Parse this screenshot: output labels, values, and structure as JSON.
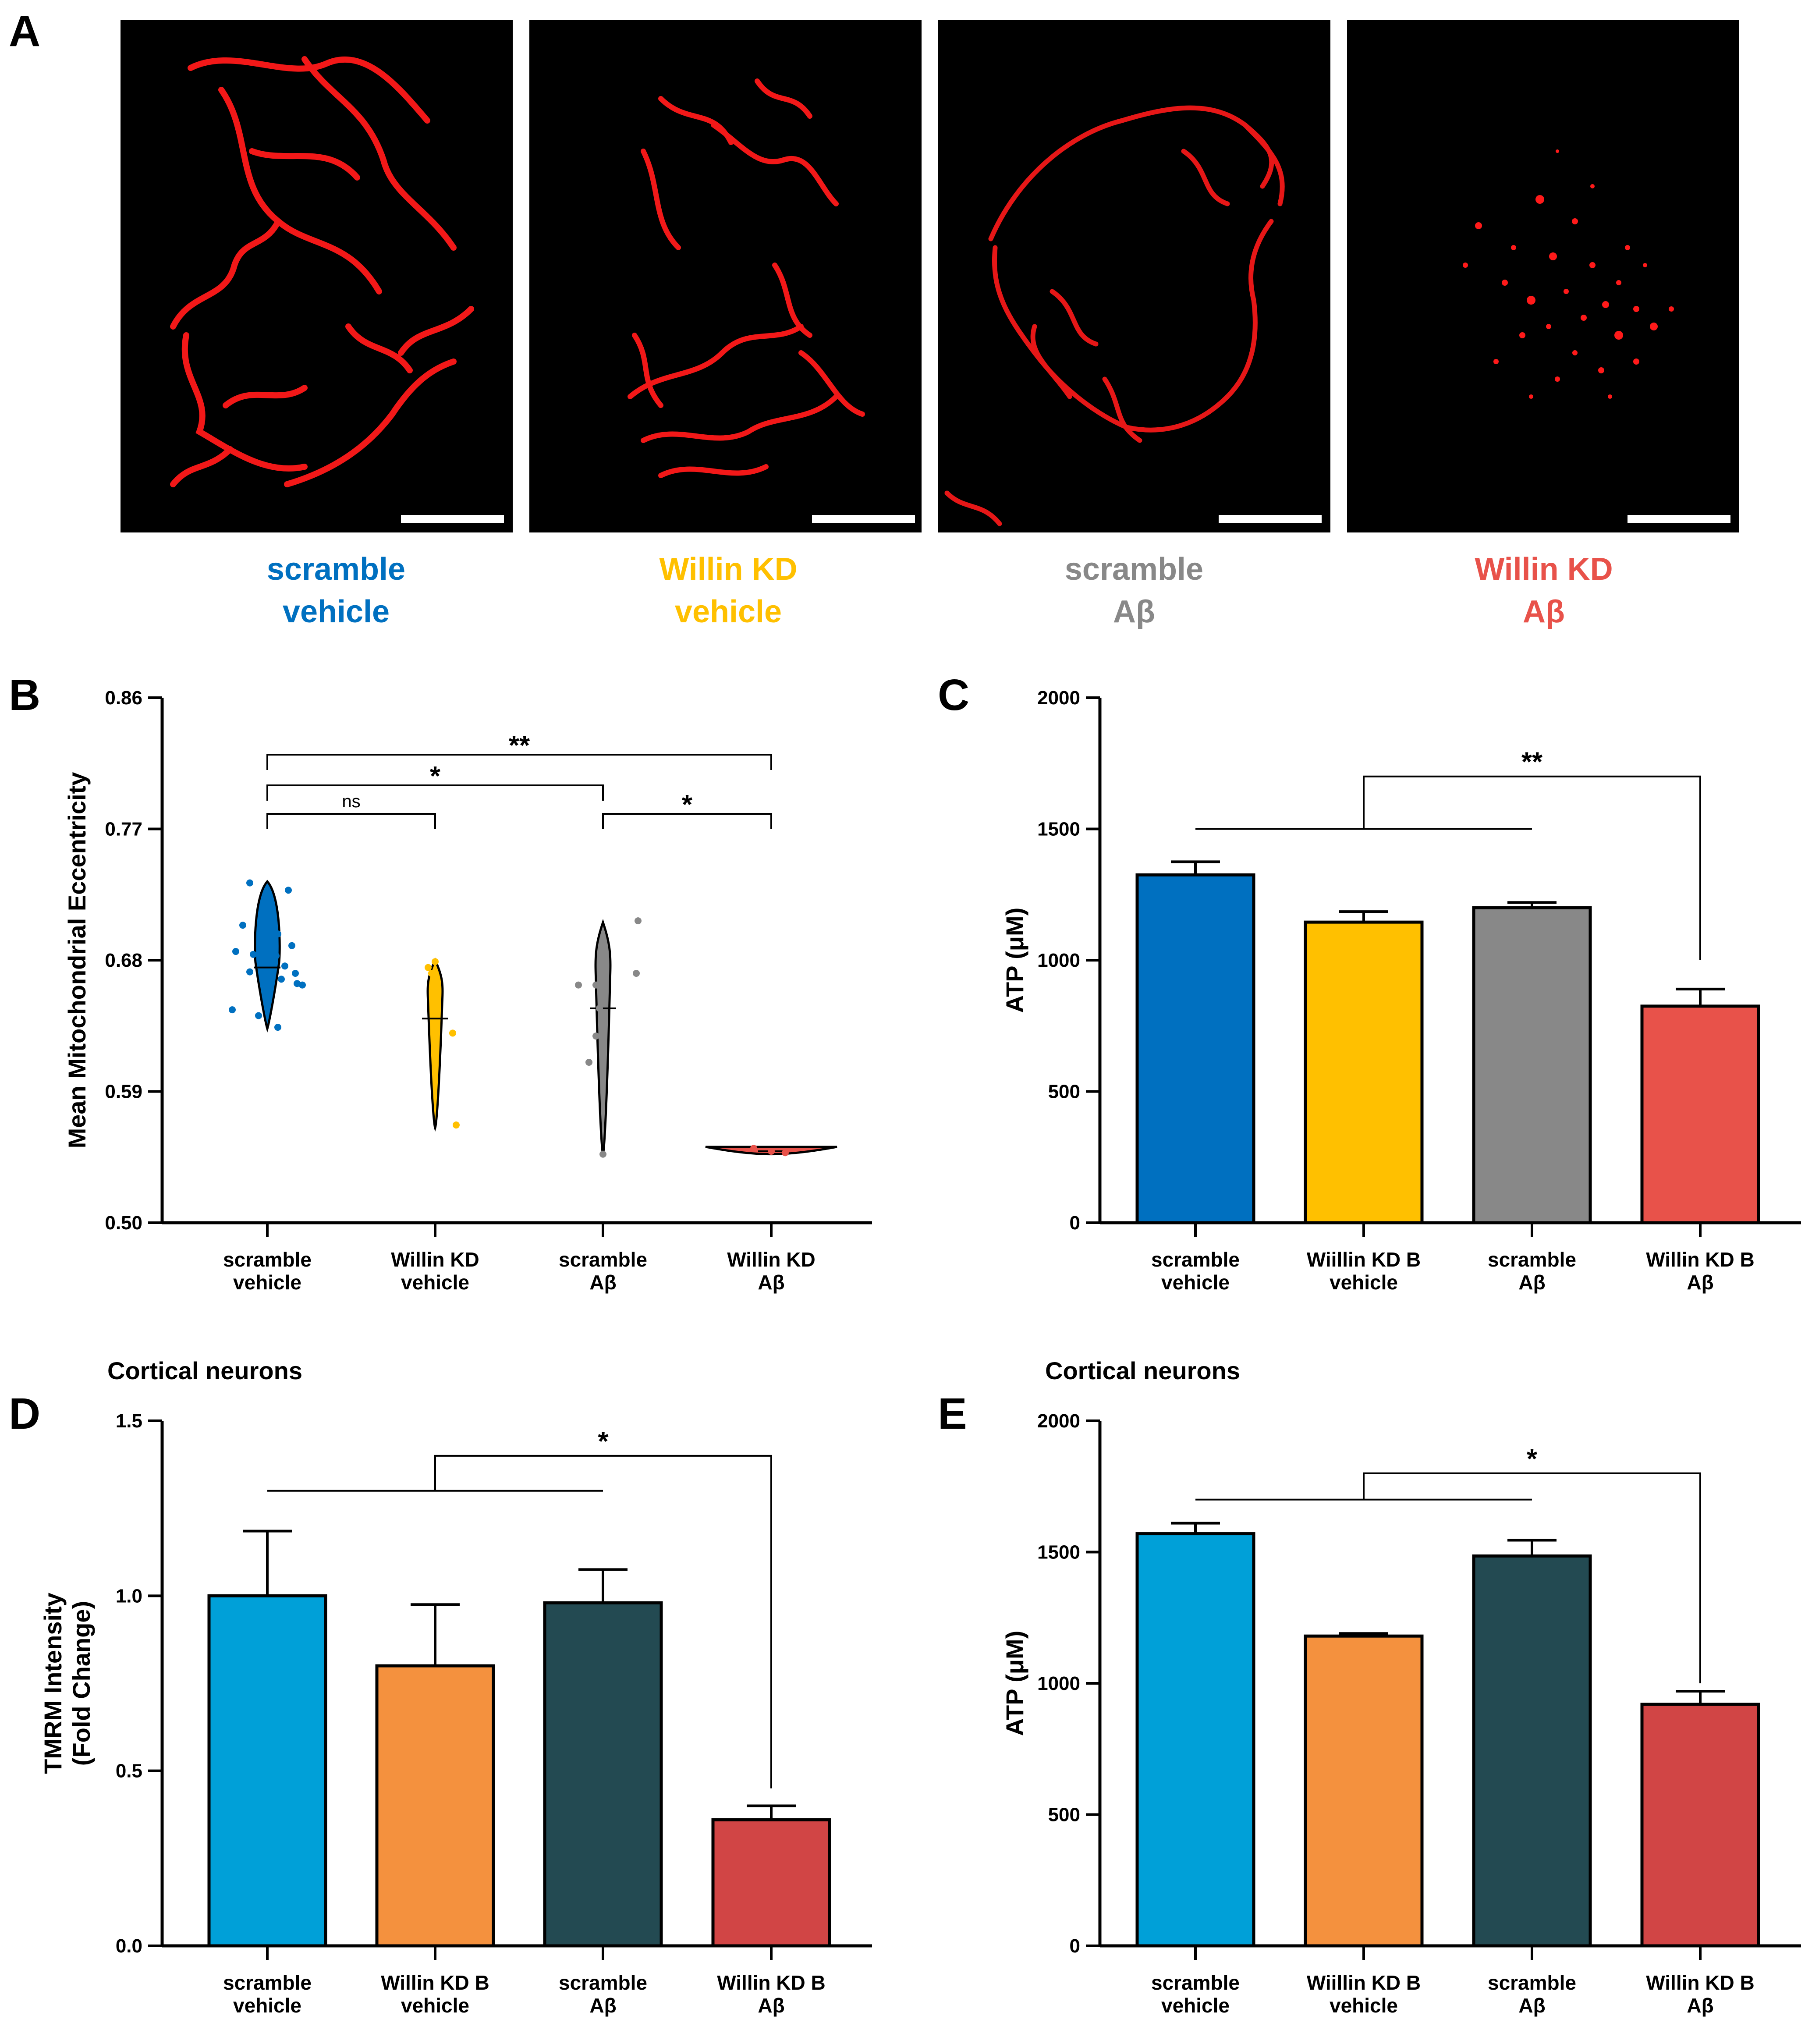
{
  "panel_letters": {
    "A": "A",
    "B": "B",
    "C": "C",
    "D": "D",
    "E": "E"
  },
  "colors": {
    "scramble_vehicle": "#0070c0",
    "willin_vehicle": "#ffc000",
    "scramble_ab": "#888888",
    "willin_ab": "#e8524a",
    "neuron_scramble_vehicle": "#00a0d8",
    "neuron_willin_vehicle": "#f4913e",
    "neuron_scramble_ab": "#234a52",
    "neuron_willin_ab": "#d14545",
    "mito_red": "#ff1a1a"
  },
  "panel_a": {
    "conditions": [
      {
        "line1": "scramble",
        "line2": "vehicle"
      },
      {
        "line1": "Willin KD",
        "line2": "vehicle"
      },
      {
        "line1": "scramble",
        "line2": "Aβ"
      },
      {
        "line1": "Willin KD",
        "line2": "Aβ"
      }
    ]
  },
  "chart_data": [
    {
      "panel": "B",
      "type": "violin",
      "title": "",
      "ylabel": "Mean Mitochondrial Eccentricity",
      "ylim": [
        0.5,
        0.86
      ],
      "yticks": [
        "0.50",
        "0.59",
        "0.68",
        "0.77",
        "0.86"
      ],
      "categories": [
        [
          "scramble",
          "vehicle"
        ],
        [
          "Willin KD",
          "vehicle"
        ],
        [
          "scramble",
          "Aβ"
        ],
        [
          "Willin KD",
          "Aβ"
        ]
      ],
      "series": [
        {
          "name": "scramble vehicle",
          "min": 0.633,
          "max": 0.734,
          "median": 0.675,
          "points": [
            [
              -0.1,
              0.733
            ],
            [
              0.12,
              0.728
            ],
            [
              -0.14,
              0.704
            ],
            [
              0.06,
              0.698
            ],
            [
              0.14,
              0.69
            ],
            [
              -0.18,
              0.686
            ],
            [
              -0.08,
              0.684
            ],
            [
              0.05,
              0.683
            ],
            [
              0.0,
              0.679
            ],
            [
              0.1,
              0.676
            ],
            [
              -0.1,
              0.672
            ],
            [
              0.16,
              0.671
            ],
            [
              0.02,
              0.668
            ],
            [
              0.08,
              0.667
            ],
            [
              0.17,
              0.664
            ],
            [
              0.2,
              0.663
            ],
            [
              -0.2,
              0.646
            ],
            [
              -0.05,
              0.642
            ],
            [
              0.06,
              0.634
            ]
          ]
        },
        {
          "name": "Willin KD vehicle",
          "min": 0.565,
          "max": 0.68,
          "median": 0.64,
          "points": [
            [
              0.0,
              0.679
            ],
            [
              -0.04,
              0.675
            ],
            [
              -0.02,
              0.671
            ],
            [
              0.1,
              0.63
            ],
            [
              0.12,
              0.567
            ]
          ]
        },
        {
          "name": "scramble Aβ",
          "min": 0.547,
          "max": 0.706,
          "median": 0.647,
          "points": [
            [
              0.2,
              0.707
            ],
            [
              -0.14,
              0.663
            ],
            [
              -0.04,
              0.663
            ],
            [
              0.19,
              0.671
            ],
            [
              -0.02,
              0.647
            ],
            [
              -0.04,
              0.628
            ],
            [
              -0.08,
              0.61
            ],
            [
              0.0,
              0.547
            ]
          ]
        },
        {
          "name": "Willin KD Aβ",
          "min": 0.547,
          "max": 0.552,
          "median": 0.549,
          "points": [
            [
              -0.1,
              0.551
            ],
            [
              0.0,
              0.549
            ],
            [
              0.08,
              0.548
            ]
          ]
        }
      ],
      "significance": [
        {
          "from": 0,
          "to": 3,
          "label": "**"
        },
        {
          "from": 0,
          "to": 2,
          "label": "*"
        },
        {
          "from": 0,
          "to": 1,
          "label": "ns"
        },
        {
          "from": 2,
          "to": 3,
          "label": "*"
        }
      ]
    },
    {
      "panel": "C",
      "type": "bar",
      "title": "",
      "ylabel": "ATP (μM)",
      "ylim": [
        0,
        2000
      ],
      "yticks": [
        "0",
        "500",
        "1000",
        "1500",
        "2000"
      ],
      "categories": [
        [
          "scramble",
          "vehicle"
        ],
        [
          "Wiillin KD B",
          "vehicle"
        ],
        [
          "scramble",
          "Aβ"
        ],
        [
          "Willin KD B",
          "Aβ"
        ]
      ],
      "values": [
        1325,
        1145,
        1200,
        825
      ],
      "errors": [
        50,
        40,
        20,
        65
      ],
      "comparison": {
        "group": [
          0,
          2
        ],
        "target": 3,
        "label": "**",
        "group_level": 1500,
        "top_level": 1700,
        "target_level": 1000
      }
    },
    {
      "panel": "D",
      "type": "bar",
      "title": "Cortical neurons",
      "ylabel_lines": [
        "TMRM Intensity",
        "(Fold Change)"
      ],
      "ylim": [
        0,
        1.5
      ],
      "yticks": [
        "0.0",
        "0.5",
        "1.0",
        "1.5"
      ],
      "categories": [
        [
          "scramble",
          "vehicle"
        ],
        [
          "Willin KD B",
          "vehicle"
        ],
        [
          "scramble",
          "Aβ"
        ],
        [
          "Willin KD B",
          "Aβ"
        ]
      ],
      "values": [
        1.0,
        0.8,
        0.98,
        0.36
      ],
      "errors": [
        0.185,
        0.175,
        0.095,
        0.04
      ],
      "comparison": {
        "group": [
          0,
          2
        ],
        "target": 3,
        "label": "*",
        "group_level": 1.3,
        "top_level": 1.4,
        "target_level": 0.45
      }
    },
    {
      "panel": "E",
      "type": "bar",
      "title": "Cortical neurons",
      "ylabel": "ATP (μM)",
      "ylim": [
        0,
        2000
      ],
      "yticks": [
        "0",
        "500",
        "1000",
        "1500",
        "2000"
      ],
      "categories": [
        [
          "scramble",
          "vehicle"
        ],
        [
          "Wiillin KD B",
          "vehicle"
        ],
        [
          "scramble",
          "Aβ"
        ],
        [
          "Willin KD B",
          "Aβ"
        ]
      ],
      "values": [
        1570,
        1180,
        1485,
        920
      ],
      "errors": [
        40,
        10,
        60,
        50
      ],
      "comparison": {
        "group": [
          0,
          2
        ],
        "target": 3,
        "label": "*",
        "group_level": 1700,
        "top_level": 1800,
        "target_level": 1000
      }
    }
  ]
}
